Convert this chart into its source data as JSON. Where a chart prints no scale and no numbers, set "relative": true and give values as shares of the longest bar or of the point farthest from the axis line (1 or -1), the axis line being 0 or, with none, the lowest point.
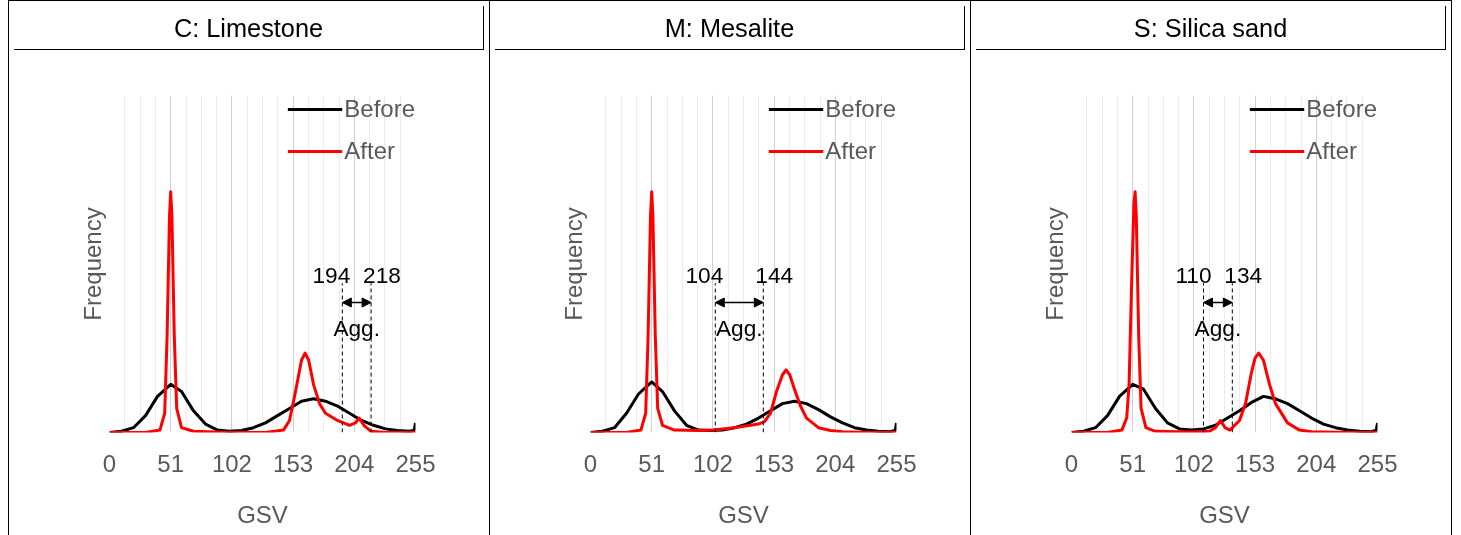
{
  "chart_data": [
    {
      "type": "line",
      "title": "C: Limestone",
      "xlabel": "GSV",
      "ylabel": "Frequency",
      "relative": true,
      "tick_labels": "x",
      "grid": "x",
      "legend": "top right",
      "line_style": "solid",
      "marker": "none",
      "xlim": [
        0,
        255
      ],
      "xticks": [
        0,
        51,
        102,
        153,
        204,
        255
      ],
      "series": [
        {
          "name": "Before",
          "color": "#000000",
          "x": [
            0,
            10,
            20,
            30,
            40,
            51,
            60,
            70,
            80,
            90,
            100,
            110,
            120,
            130,
            140,
            150,
            160,
            170,
            180,
            190,
            200,
            210,
            220,
            230,
            240,
            250,
            254,
            255
          ],
          "values": [
            0,
            0.005,
            0.02,
            0.07,
            0.15,
            0.2,
            0.17,
            0.09,
            0.035,
            0.01,
            0.005,
            0.008,
            0.02,
            0.04,
            0.07,
            0.1,
            0.13,
            0.14,
            0.13,
            0.11,
            0.08,
            0.05,
            0.03,
            0.015,
            0.008,
            0.005,
            0.01,
            0.04
          ]
        },
        {
          "name": "After",
          "color": "#ff0000",
          "x": [
            0,
            30,
            42,
            46,
            48,
            50,
            51,
            52,
            54,
            56,
            60,
            70,
            100,
            130,
            145,
            150,
            155,
            160,
            163,
            166,
            170,
            175,
            180,
            190,
            200,
            205,
            208,
            212,
            218,
            230,
            255
          ],
          "values": [
            0,
            0,
            0.01,
            0.08,
            0.4,
            0.9,
            1,
            0.9,
            0.4,
            0.1,
            0.02,
            0.005,
            0,
            0,
            0.01,
            0.05,
            0.17,
            0.3,
            0.33,
            0.3,
            0.2,
            0.12,
            0.08,
            0.05,
            0.03,
            0.04,
            0.06,
            0.03,
            0.005,
            0,
            0
          ]
        }
      ],
      "ref_lines": [
        {
          "axis": "x",
          "value": 194,
          "label": "194",
          "line_style": "dashed"
        },
        {
          "axis": "x",
          "value": 218,
          "label": "218",
          "line_style": "dashed"
        }
      ],
      "annotations": [
        "Agg."
      ]
    },
    {
      "type": "line",
      "title": "M: Mesalite",
      "xlabel": "GSV",
      "ylabel": "Frequency",
      "relative": true,
      "tick_labels": "x",
      "grid": "x",
      "legend": "top right",
      "line_style": "solid",
      "marker": "none",
      "xlim": [
        0,
        255
      ],
      "xticks": [
        0,
        51,
        102,
        153,
        204,
        255
      ],
      "series": [
        {
          "name": "Before",
          "color": "#000000",
          "x": [
            0,
            10,
            20,
            30,
            40,
            51,
            60,
            70,
            80,
            90,
            100,
            110,
            120,
            130,
            140,
            150,
            160,
            170,
            180,
            190,
            200,
            210,
            220,
            230,
            240,
            250,
            254,
            255
          ],
          "values": [
            0,
            0.005,
            0.02,
            0.08,
            0.16,
            0.21,
            0.17,
            0.09,
            0.03,
            0.01,
            0.008,
            0.01,
            0.02,
            0.035,
            0.06,
            0.09,
            0.12,
            0.13,
            0.12,
            0.095,
            0.065,
            0.04,
            0.02,
            0.01,
            0.005,
            0.003,
            0.01,
            0.04
          ]
        },
        {
          "name": "After",
          "color": "#ff0000",
          "x": [
            0,
            30,
            42,
            46,
            48,
            50,
            51,
            52,
            54,
            56,
            60,
            70,
            90,
            102,
            120,
            140,
            145,
            150,
            155,
            160,
            163,
            166,
            170,
            175,
            180,
            190,
            200,
            210,
            230,
            255
          ],
          "values": [
            0,
            0,
            0.01,
            0.08,
            0.4,
            0.9,
            1,
            0.9,
            0.4,
            0.1,
            0.03,
            0.01,
            0.008,
            0.01,
            0.02,
            0.035,
            0.045,
            0.08,
            0.17,
            0.24,
            0.26,
            0.24,
            0.18,
            0.11,
            0.06,
            0.02,
            0.008,
            0.003,
            0,
            0
          ]
        }
      ],
      "ref_lines": [
        {
          "axis": "x",
          "value": 104,
          "label": "104",
          "line_style": "dashed"
        },
        {
          "axis": "x",
          "value": 144,
          "label": "144",
          "line_style": "dashed"
        }
      ],
      "annotations": [
        "Agg."
      ]
    },
    {
      "type": "line",
      "title": "S: Silica sand",
      "xlabel": "GSV",
      "ylabel": "Frequency",
      "relative": true,
      "tick_labels": "x",
      "grid": "x",
      "legend": "top right",
      "line_style": "solid",
      "marker": "none",
      "xlim": [
        0,
        255
      ],
      "xticks": [
        0,
        51,
        102,
        153,
        204,
        255
      ],
      "series": [
        {
          "name": "Before",
          "color": "#000000",
          "x": [
            0,
            10,
            20,
            30,
            40,
            51,
            60,
            70,
            80,
            90,
            100,
            110,
            120,
            130,
            140,
            150,
            160,
            170,
            180,
            190,
            200,
            210,
            220,
            230,
            240,
            250,
            254,
            255
          ],
          "values": [
            0,
            0.005,
            0.02,
            0.07,
            0.15,
            0.2,
            0.18,
            0.1,
            0.04,
            0.015,
            0.01,
            0.015,
            0.03,
            0.06,
            0.09,
            0.125,
            0.15,
            0.14,
            0.12,
            0.09,
            0.06,
            0.035,
            0.02,
            0.01,
            0.005,
            0.003,
            0.01,
            0.04
          ]
        },
        {
          "name": "After",
          "color": "#ff0000",
          "x": [
            0,
            30,
            42,
            46,
            48,
            50,
            52,
            53,
            54,
            56,
            58,
            62,
            70,
            100,
            115,
            120,
            124,
            128,
            132,
            140,
            145,
            150,
            153,
            156,
            160,
            165,
            170,
            180,
            190,
            200,
            230,
            255
          ],
          "values": [
            0,
            0,
            0.01,
            0.06,
            0.2,
            0.6,
            0.95,
            1,
            0.9,
            0.4,
            0.1,
            0.02,
            0.005,
            0.002,
            0.005,
            0.02,
            0.05,
            0.02,
            0.01,
            0.05,
            0.12,
            0.25,
            0.31,
            0.33,
            0.3,
            0.2,
            0.12,
            0.04,
            0.01,
            0.003,
            0,
            0
          ]
        }
      ],
      "ref_lines": [
        {
          "axis": "x",
          "value": 110,
          "label": "110",
          "line_style": "dashed"
        },
        {
          "axis": "x",
          "value": 134,
          "label": "134",
          "line_style": "dashed"
        }
      ],
      "annotations": [
        "Agg."
      ]
    }
  ]
}
